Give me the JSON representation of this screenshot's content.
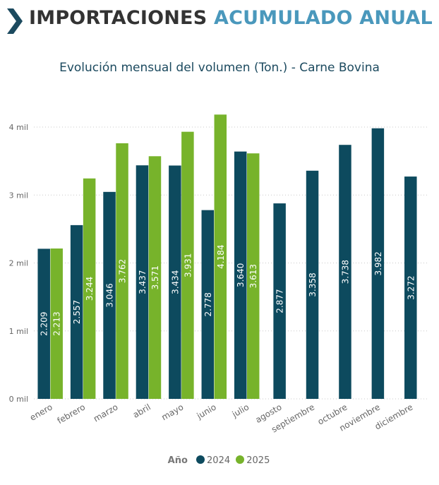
{
  "header": {
    "title_part1": "IMPORTACIONES",
    "title_part2": "ACUMULADO ANUAL",
    "accent_color": "#4a98bc",
    "icon": "chevron-right-icon"
  },
  "chart_data": {
    "type": "bar",
    "title": "Evolución mensual del volumen (Ton.) - Carne Bovina",
    "xlabel": "",
    "ylabel": "",
    "categories": [
      "enero",
      "febrero",
      "marzo",
      "abril",
      "mayo",
      "junio",
      "julio",
      "agosto",
      "septiembre",
      "octubre",
      "noviembre",
      "diciembre"
    ],
    "series": [
      {
        "name": "2024",
        "color": "#0d4a5e",
        "values": [
          2209,
          2557,
          3046,
          3437,
          3434,
          2778,
          3640,
          2877,
          3358,
          3738,
          3982,
          3272
        ],
        "labels": [
          "2.209",
          "2.557",
          "3.046",
          "3.437",
          "3.434",
          "2.778",
          "3.640",
          "2.877",
          "3.358",
          "3.738",
          "3.982",
          "3.272"
        ]
      },
      {
        "name": "2025",
        "color": "#77b32b",
        "values": [
          2213,
          3244,
          3762,
          3571,
          3931,
          4184,
          3613,
          null,
          null,
          null,
          null,
          null
        ],
        "labels": [
          "2.213",
          "3.244",
          "3.762",
          "3.571",
          "3.931",
          "4.184",
          "3.613",
          null,
          null,
          null,
          null,
          null
        ]
      }
    ],
    "ylim": [
      0,
      4350
    ],
    "yticks": [
      0,
      1000,
      2000,
      3000,
      4000
    ],
    "ytick_labels": [
      "0 mil",
      "1 mil",
      "2 mil",
      "3 mil",
      "4 mil"
    ],
    "grid": true,
    "legend": {
      "title": "Año",
      "position": "bottom-center"
    }
  }
}
